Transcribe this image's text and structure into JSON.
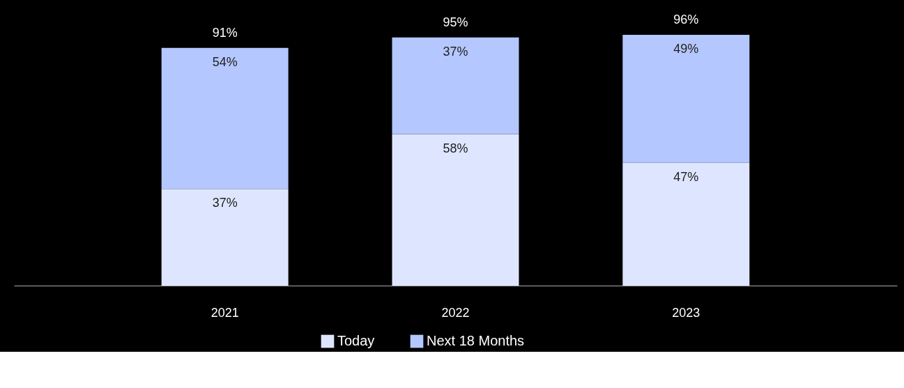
{
  "chart_data": {
    "type": "bar",
    "stacked": true,
    "categories": [
      "2021",
      "2022",
      "2023"
    ],
    "series": [
      {
        "name": "Today",
        "color": "#dee6ff",
        "values": [
          37,
          58,
          47
        ],
        "value_labels": [
          "37%",
          "58%",
          "47%"
        ]
      },
      {
        "name": "Next 18 Months",
        "color": "#b4c7ff",
        "values": [
          54,
          37,
          49
        ],
        "value_labels": [
          "54%",
          "37%",
          "49%"
        ]
      }
    ],
    "totals": [
      "91%",
      "95%",
      "96%"
    ],
    "tick_labels": "x",
    "grid": false,
    "legend": "bottom"
  }
}
